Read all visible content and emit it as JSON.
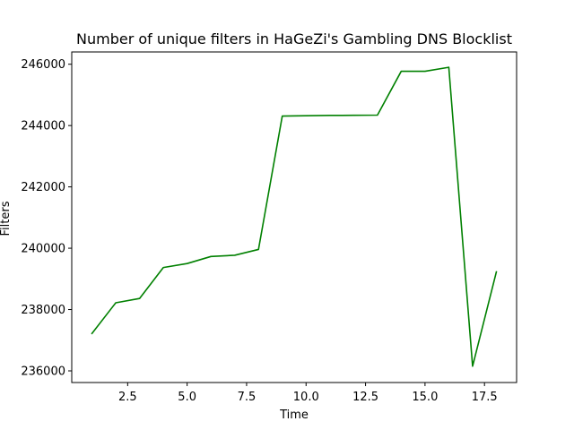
{
  "chart_data": {
    "type": "line",
    "title": "Number of unique filters in HaGeZi's Gambling DNS Blocklist",
    "xlabel": "Time",
    "ylabel": "Filters",
    "xlim": [
      0.15,
      18.85
    ],
    "ylim": [
      235620,
      246400
    ],
    "xticks": [
      2.5,
      5.0,
      7.5,
      10.0,
      12.5,
      15.0,
      17.5
    ],
    "xtick_labels": [
      "2.5",
      "5.0",
      "7.5",
      "10.0",
      "12.5",
      "15.0",
      "17.5"
    ],
    "yticks": [
      236000,
      238000,
      240000,
      242000,
      244000,
      246000
    ],
    "ytick_labels": [
      "236000",
      "238000",
      "240000",
      "242000",
      "244000",
      "246000"
    ],
    "grid": false,
    "series": [
      {
        "color": "#008000",
        "x": [
          1,
          2,
          3,
          4,
          5,
          6,
          7,
          8,
          9,
          10,
          11,
          12,
          13,
          14,
          15,
          16,
          17,
          18
        ],
        "y": [
          237220,
          238220,
          238360,
          239370,
          239500,
          239730,
          239770,
          239960,
          244310,
          244320,
          244330,
          244335,
          244340,
          245770,
          245770,
          245900,
          236150,
          239230
        ]
      }
    ]
  }
}
